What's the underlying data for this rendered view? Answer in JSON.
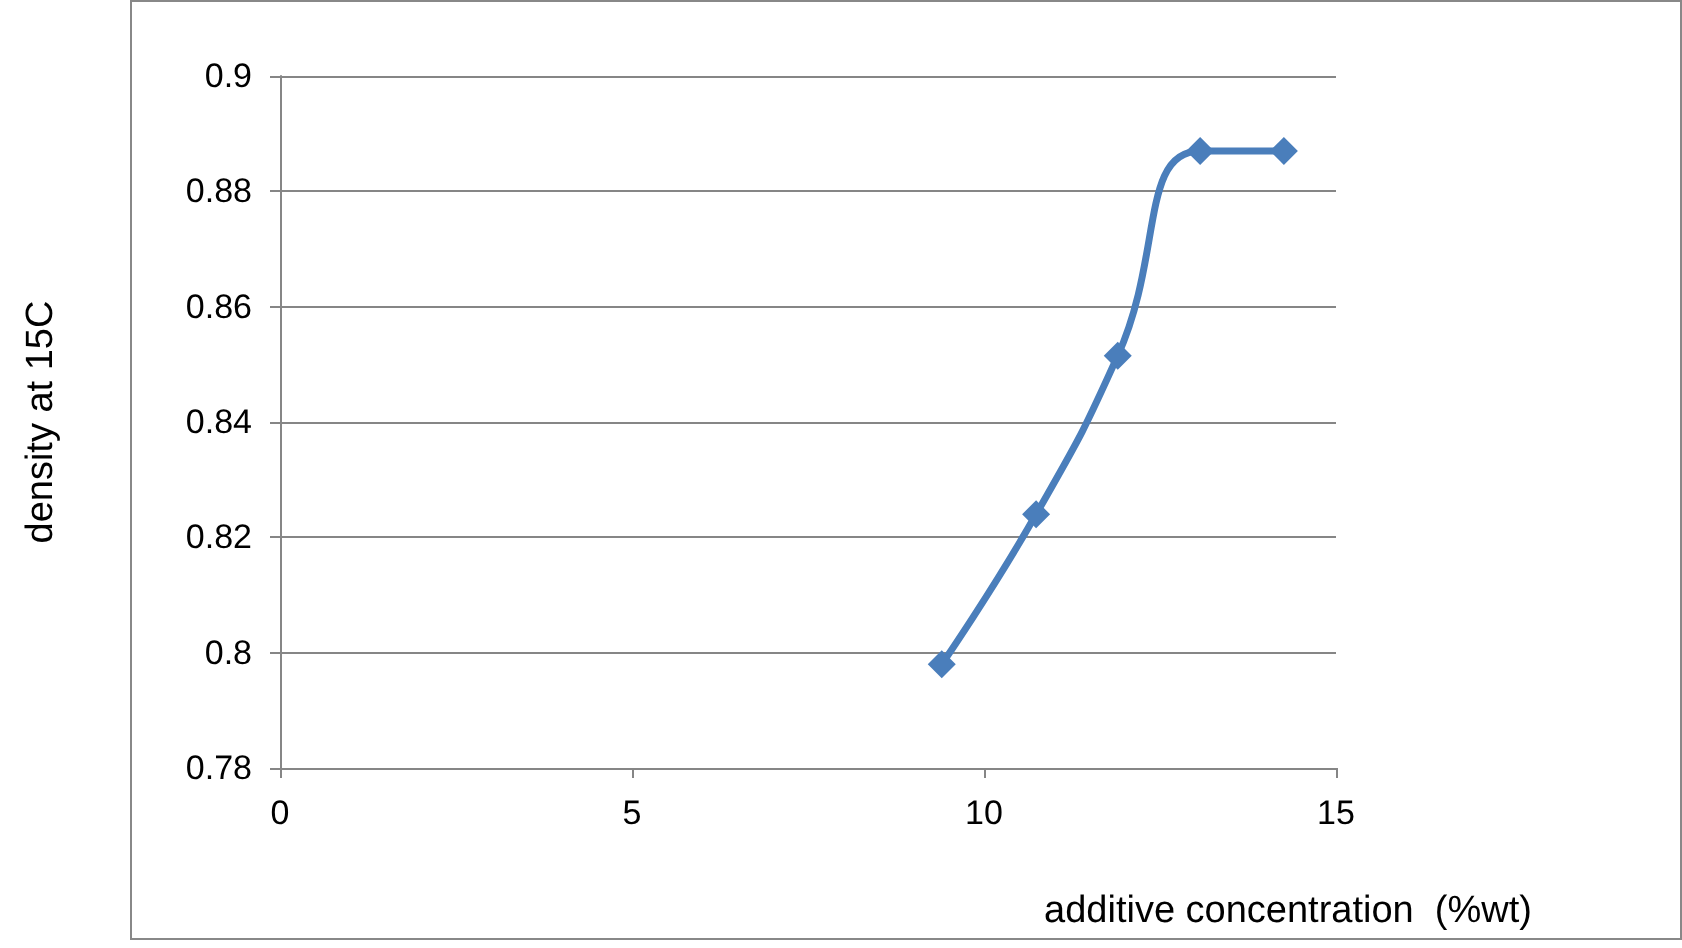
{
  "chart_data": {
    "type": "line",
    "xlabel": "additive concentration  (%wt)",
    "ylabel": "density at 15C",
    "x": [
      9.4,
      10.74,
      11.9,
      13.07,
      14.26
    ],
    "series": [
      {
        "color": "#4a7ebb",
        "values": [
          0.798,
          0.824,
          0.8515,
          0.887,
          0.887
        ]
      }
    ],
    "xlim": [
      0,
      15
    ],
    "xticks": [
      0,
      5,
      10,
      15
    ],
    "ylim": [
      0.78,
      0.9
    ],
    "yticks": [
      0.78,
      0.8,
      0.82,
      0.84,
      0.86,
      0.88,
      0.9
    ],
    "grid": "y",
    "marker": "diamond",
    "line_style": "solid"
  }
}
